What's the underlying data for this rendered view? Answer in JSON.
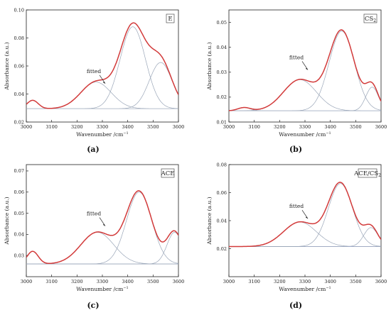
{
  "figure": {
    "xlabel": "Wavenumber /cm",
    "xlabel_sup": "−1",
    "ylabel": "Absorbance (a.u.)",
    "annotation": "fitted",
    "colors": {
      "spectrum": "#d23a3a",
      "component": "#9aa6b8",
      "baseline": "#6d7fd0",
      "axis": "#222222"
    }
  },
  "chart_data": [
    {
      "type": "line",
      "panel_label": "(a)",
      "legend_box": "E",
      "xlim": [
        3000,
        3600
      ],
      "ylim": [
        0.02,
        0.1
      ],
      "xticks": [
        3000,
        3100,
        3200,
        3300,
        3400,
        3500,
        3600
      ],
      "yticks": [
        0.02,
        0.04,
        0.06,
        0.08,
        0.1
      ],
      "ytick_labels": [
        "0.02",
        "0.04",
        "0.06",
        "0.08",
        "0.10"
      ],
      "baseline": 0.0295,
      "components": [
        {
          "center": 3025,
          "height": 0.006,
          "width": 22
        },
        {
          "center": 3275,
          "height": 0.019,
          "width": 60
        },
        {
          "center": 3420,
          "height": 0.0585,
          "width": 50
        },
        {
          "center": 3530,
          "height": 0.033,
          "width": 45
        }
      ],
      "annotation_at": [
        3300,
        0.052
      ]
    },
    {
      "type": "line",
      "panel_label": "(b)",
      "legend_box": "CS2",
      "xlim": [
        3000,
        3600
      ],
      "ylim": [
        0.01,
        0.055
      ],
      "xticks": [
        3000,
        3100,
        3200,
        3300,
        3400,
        3500,
        3600
      ],
      "yticks": [
        0.01,
        0.02,
        0.03,
        0.04,
        0.05
      ],
      "ytick_labels": [
        "0.01",
        "0.02",
        "0.03",
        "0.04",
        "0.05"
      ],
      "baseline": 0.0145,
      "components": [
        {
          "center": 3060,
          "height": 0.0013,
          "width": 25
        },
        {
          "center": 3280,
          "height": 0.0125,
          "width": 65
        },
        {
          "center": 3445,
          "height": 0.032,
          "width": 50
        },
        {
          "center": 3565,
          "height": 0.0095,
          "width": 25
        }
      ],
      "annotation_at": [
        3300,
        0.0335
      ]
    },
    {
      "type": "line",
      "panel_label": "(c)",
      "legend_box": "ACE",
      "xlim": [
        3000,
        3600
      ],
      "ylim": [
        0.02,
        0.073
      ],
      "xticks": [
        3000,
        3100,
        3200,
        3300,
        3400,
        3500,
        3600
      ],
      "yticks": [
        0.03,
        0.04,
        0.05,
        0.06,
        0.07
      ],
      "ytick_labels": [
        "0.03",
        "0.04",
        "0.05",
        "0.06",
        "0.07"
      ],
      "baseline": 0.026,
      "components": [
        {
          "center": 3025,
          "height": 0.006,
          "width": 22
        },
        {
          "center": 3280,
          "height": 0.015,
          "width": 65
        },
        {
          "center": 3445,
          "height": 0.034,
          "width": 50
        },
        {
          "center": 3585,
          "height": 0.015,
          "width": 30
        }
      ],
      "annotation_at": [
        3300,
        0.047
      ]
    },
    {
      "type": "line",
      "panel_label": "(d)",
      "legend_box": "ACE/CS2",
      "xlim": [
        3000,
        3600
      ],
      "ylim": [
        0.0,
        0.08
      ],
      "xticks": [
        3000,
        3100,
        3200,
        3300,
        3400,
        3500,
        3600
      ],
      "yticks": [
        0.02,
        0.04,
        0.06,
        0.08
      ],
      "ytick_labels": [
        "0.02",
        "0.04",
        "0.06",
        "0.08"
      ],
      "baseline": 0.0215,
      "components": [
        {
          "center": 3280,
          "height": 0.0175,
          "width": 65
        },
        {
          "center": 3440,
          "height": 0.045,
          "width": 48
        },
        {
          "center": 3560,
          "height": 0.0135,
          "width": 28
        }
      ],
      "annotation_at": [
        3300,
        0.046
      ]
    }
  ]
}
